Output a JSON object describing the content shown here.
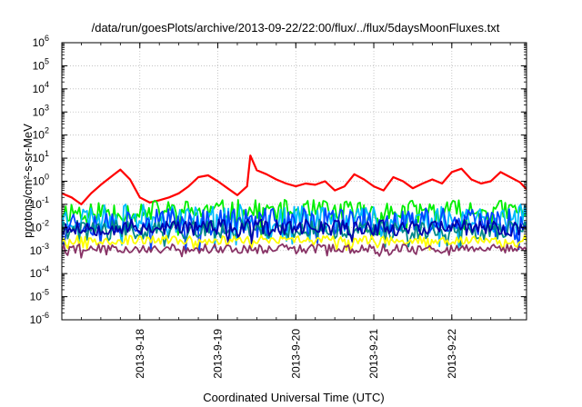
{
  "chart_data": {
    "type": "line",
    "title": "/data/run/goesPlots/archive/2013-09-22/22:00/flux/../flux/5daysMoonFluxes.txt",
    "xlabel": "Coordinated Universal Time (UTC)",
    "ylabel": "protons/cm²-s-sr-MeV",
    "y_scale": "log",
    "grid": true,
    "legend": "none",
    "xlim": [
      "2013-09-17T00:00",
      "2013-09-22T23:00"
    ],
    "ylim": [
      1e-06,
      1000000.0
    ],
    "x_ticks": [
      "2013-9-18",
      "2013-9-19",
      "2013-9-20",
      "2013-9-21",
      "2013-9-22"
    ],
    "y_ticks": [
      {
        "value": 1e-06,
        "base": "10",
        "exp": "-6"
      },
      {
        "value": 1e-05,
        "base": "10",
        "exp": "-5"
      },
      {
        "value": 0.0001,
        "base": "10",
        "exp": "-4"
      },
      {
        "value": 0.001,
        "base": "10",
        "exp": "-3"
      },
      {
        "value": 0.01,
        "base": "10",
        "exp": "-2"
      },
      {
        "value": 0.1,
        "base": "10",
        "exp": "-1"
      },
      {
        "value": 1,
        "base": "10",
        "exp": "0"
      },
      {
        "value": 10.0,
        "base": "10",
        "exp": "1"
      },
      {
        "value": 100.0,
        "base": "10",
        "exp": "2"
      },
      {
        "value": 1000.0,
        "base": "10",
        "exp": "3"
      },
      {
        "value": 10000.0,
        "base": "10",
        "exp": "4"
      },
      {
        "value": 100000.0,
        "base": "10",
        "exp": "5"
      },
      {
        "value": 1000000.0,
        "base": "10",
        "exp": "6"
      }
    ],
    "series": [
      {
        "color": "#ff0000",
        "x": [
          "2013-09-17T00:00",
          "2013-09-17T03:00",
          "2013-09-17T06:00",
          "2013-09-17T09:00",
          "2013-09-17T12:00",
          "2013-09-17T15:00",
          "2013-09-17T18:00",
          "2013-09-17T21:00",
          "2013-09-18T00:00",
          "2013-09-18T03:00",
          "2013-09-18T06:00",
          "2013-09-18T09:00",
          "2013-09-18T12:00",
          "2013-09-18T15:00",
          "2013-09-18T18:00",
          "2013-09-18T21:00",
          "2013-09-19T00:00",
          "2013-09-19T03:00",
          "2013-09-19T06:00",
          "2013-09-19T09:00",
          "2013-09-19T10:00",
          "2013-09-19T12:00",
          "2013-09-19T15:00",
          "2013-09-19T18:00",
          "2013-09-19T21:00",
          "2013-09-20T00:00",
          "2013-09-20T03:00",
          "2013-09-20T06:00",
          "2013-09-20T09:00",
          "2013-09-20T12:00",
          "2013-09-20T15:00",
          "2013-09-20T18:00",
          "2013-09-20T21:00",
          "2013-09-21T00:00",
          "2013-09-21T03:00",
          "2013-09-21T06:00",
          "2013-09-21T09:00",
          "2013-09-21T12:00",
          "2013-09-21T15:00",
          "2013-09-21T18:00",
          "2013-09-21T21:00",
          "2013-09-22T00:00",
          "2013-09-22T03:00",
          "2013-09-22T06:00",
          "2013-09-22T09:00",
          "2013-09-22T12:00",
          "2013-09-22T15:00",
          "2013-09-22T18:00",
          "2013-09-22T21:00",
          "2013-09-22T23:00"
        ],
        "y": [
          0.3,
          0.2,
          0.1,
          0.3,
          0.7,
          1.5,
          3.2,
          1.2,
          0.2,
          0.12,
          0.15,
          0.2,
          0.3,
          0.6,
          1.5,
          1.8,
          1.0,
          0.5,
          0.25,
          0.6,
          13,
          3.0,
          2.0,
          1.2,
          0.8,
          0.6,
          0.8,
          0.7,
          1.0,
          0.4,
          0.6,
          2.0,
          1.2,
          0.6,
          0.4,
          1.5,
          1.0,
          0.5,
          0.8,
          1.2,
          0.8,
          2.5,
          3.5,
          1.2,
          0.8,
          1.0,
          2.5,
          1.5,
          0.9,
          0.45
        ]
      },
      {
        "color": "#00ee00",
        "x": [
          "2013-09-17T00:00",
          "2013-09-22T23:00"
        ],
        "y": [
          0.05,
          0.05
        ],
        "noise": 0.5,
        "seed": 11
      },
      {
        "color": "#00bbff",
        "x": [
          "2013-09-17T00:00",
          "2013-09-22T23:00"
        ],
        "y": [
          0.025,
          0.025
        ],
        "noise": 0.6,
        "seed": 23
      },
      {
        "color": "#0044ff",
        "x": [
          "2013-09-17T00:00",
          "2013-09-22T23:00"
        ],
        "y": [
          0.018,
          0.018
        ],
        "noise": 0.6,
        "seed": 37
      },
      {
        "color": "#008888",
        "x": [
          "2013-09-17T00:00",
          "2013-09-22T23:00"
        ],
        "y": [
          0.008,
          0.008
        ],
        "noise": 0.4,
        "seed": 41
      },
      {
        "color": "#0000aa",
        "x": [
          "2013-09-17T00:00",
          "2013-09-22T23:00"
        ],
        "y": [
          0.01,
          0.01
        ],
        "noise": 0.35,
        "seed": 53
      },
      {
        "color": "#ffff00",
        "x": [
          "2013-09-17T00:00",
          "2013-09-22T23:00"
        ],
        "y": [
          0.0028,
          0.0028
        ],
        "noise": 0.2,
        "seed": 67
      },
      {
        "color": "#883366",
        "x": [
          "2013-09-17T00:00",
          "2013-09-22T23:00"
        ],
        "y": [
          0.0012,
          0.0012
        ],
        "noise": 0.2,
        "seed": 79
      }
    ]
  }
}
